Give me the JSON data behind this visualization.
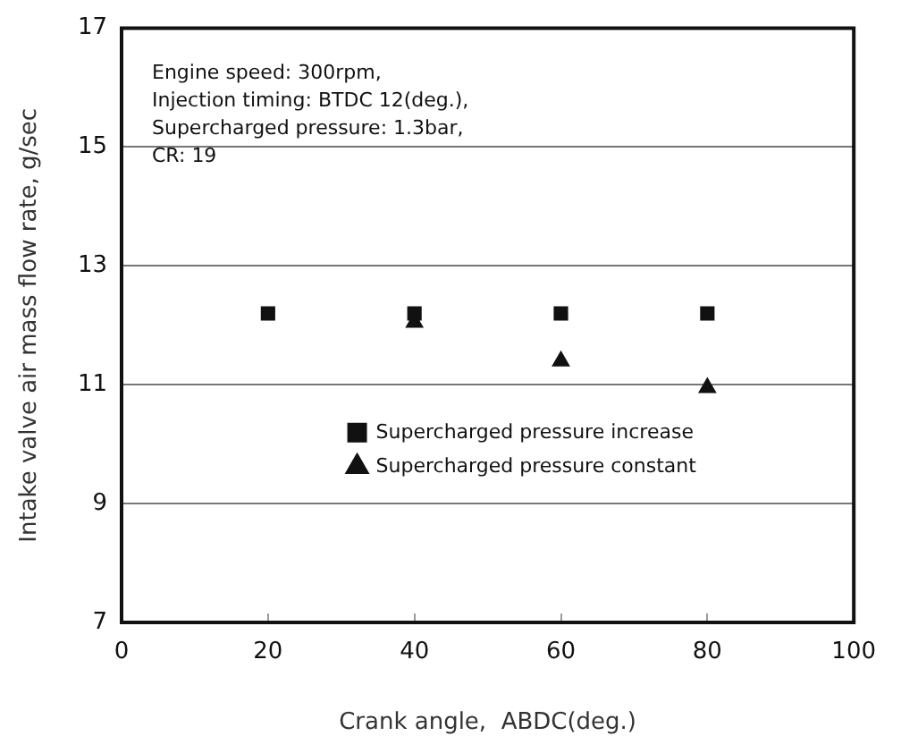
{
  "chart_data": {
    "type": "scatter",
    "xlabel": "Crank angle,  ABDC(deg.)",
    "ylabel": "Intake valve air mass flow rate, g/sec",
    "x": [
      20,
      40,
      60,
      80
    ],
    "series": [
      {
        "name": "Supercharged pressure increase",
        "color": "#111111",
        "marker": "square",
        "values": [
          12.2,
          12.2,
          12.2,
          12.2
        ]
      },
      {
        "name": "Supercharged pressure constant",
        "color": "#111111",
        "marker": "triangle",
        "values": [
          null,
          12.05,
          11.4,
          10.95
        ]
      }
    ],
    "xlim": [
      0,
      100
    ],
    "xticks": [
      0,
      20,
      40,
      60,
      80,
      100
    ],
    "ylim": [
      7,
      17
    ],
    "yticks": [
      7,
      9,
      11,
      13,
      15,
      17
    ],
    "grid": "y",
    "legend": "bottom",
    "annotations": [
      "Engine speed: 300rpm,",
      "Injection timing: BTDC 12(deg.),",
      "Supercharged pressure: 1.3bar,",
      "CR: 19"
    ]
  }
}
